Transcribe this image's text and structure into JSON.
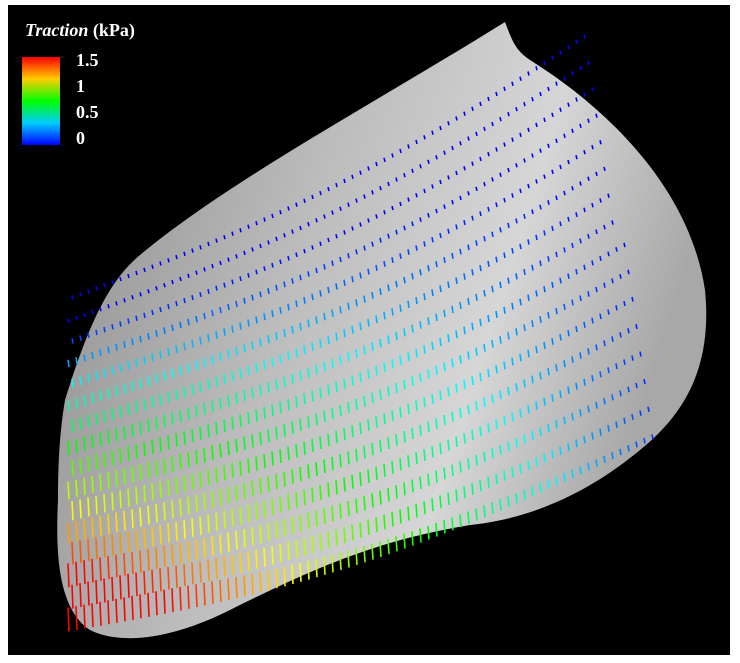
{
  "colorbar": {
    "title_italic": "Traction",
    "title_unit": "(kPa)",
    "ticks": [
      1.5,
      1,
      0.5,
      0
    ]
  }
}
